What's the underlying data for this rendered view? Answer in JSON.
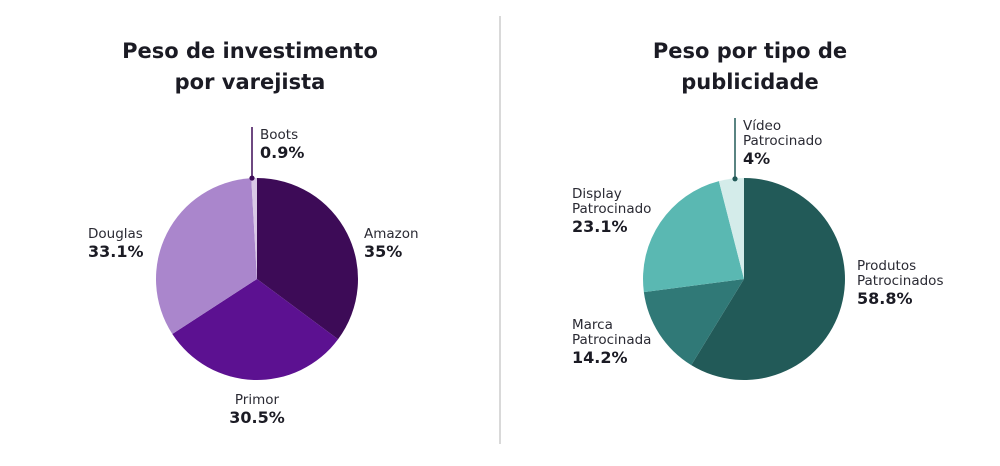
{
  "colors": {
    "background": "#ffffff",
    "divider": "#d9d9d9",
    "text": "#1b1b24"
  },
  "chart_data": [
    {
      "type": "pie",
      "title": "Peso de investimento por varejista",
      "title_lines": [
        "Peso de investimento",
        "por varejista"
      ],
      "start_angle": "12 o'clock",
      "direction": "clockwise",
      "slices": [
        {
          "label": [
            "Amazon"
          ],
          "value": 35,
          "value_label": "35%",
          "color": "#3d0b57"
        },
        {
          "label": [
            "Primor"
          ],
          "value": 30.5,
          "value_label": "30.5%",
          "color": "#5c1191"
        },
        {
          "label": [
            "Douglas"
          ],
          "value": 33.1,
          "value_label": "33.1%",
          "color": "#aa86cc"
        },
        {
          "label": [
            "Boots"
          ],
          "value": 0.9,
          "value_label": "0.9%",
          "color": "#d9c8e6"
        }
      ]
    },
    {
      "type": "pie",
      "title": "Peso por tipo de publicidade",
      "title_lines": [
        "Peso por tipo de",
        "publicidade"
      ],
      "start_angle": "12 o'clock",
      "direction": "clockwise",
      "slices": [
        {
          "label": [
            "Produtos",
            "Patrocinados"
          ],
          "value": 58.8,
          "value_label": "58.8%",
          "color": "#225a58"
        },
        {
          "label": [
            "Marca",
            "Patrocinada"
          ],
          "value": 14.2,
          "value_label": "14.2%",
          "color": "#307977"
        },
        {
          "label": [
            "Display",
            "Patrocinado"
          ],
          "value": 23.1,
          "value_label": "23.1%",
          "color": "#5ab8b2"
        },
        {
          "label": [
            "Vídeo",
            "Patrocinado"
          ],
          "value": 4,
          "value_label": "4%",
          "color": "#d4ecea"
        }
      ]
    }
  ]
}
